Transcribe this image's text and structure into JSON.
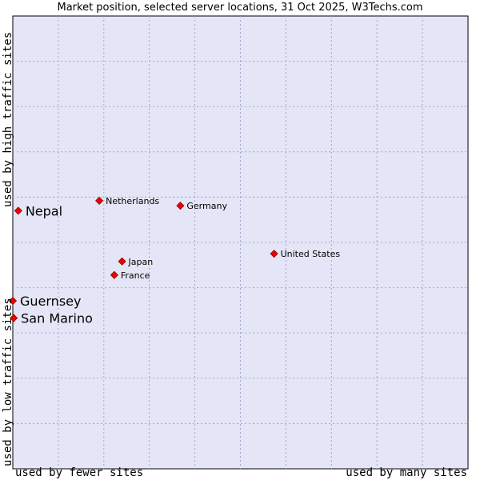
{
  "chart_data": {
    "type": "scatter",
    "title": "Market position, selected server locations, 31 Oct 2025, W3Techs.com",
    "xlabel_left": "used by fewer sites",
    "xlabel_right": "used by many sites",
    "ylabel_top": "used by high traffic sites",
    "ylabel_bottom": "used by low traffic sites",
    "xlim": [
      0,
      100
    ],
    "ylim": [
      0,
      100
    ],
    "grid": true,
    "marker_color": "#ee0000",
    "plot_background": "#e4e6f7",
    "points": [
      {
        "name": "Nepal",
        "x": 1.2,
        "y": 57.0,
        "size": "large"
      },
      {
        "name": "Netherlands",
        "x": 19.0,
        "y": 59.2,
        "size": "small"
      },
      {
        "name": "Germany",
        "x": 36.8,
        "y": 58.1,
        "size": "small"
      },
      {
        "name": "United States",
        "x": 57.4,
        "y": 47.5,
        "size": "small"
      },
      {
        "name": "Japan",
        "x": 24.0,
        "y": 45.8,
        "size": "small"
      },
      {
        "name": "France",
        "x": 22.3,
        "y": 42.8,
        "size": "small"
      },
      {
        "name": "Guernsey",
        "x": 0.0,
        "y": 37.1,
        "size": "large"
      },
      {
        "name": "San Marino",
        "x": 0.2,
        "y": 33.3,
        "size": "large"
      }
    ]
  }
}
